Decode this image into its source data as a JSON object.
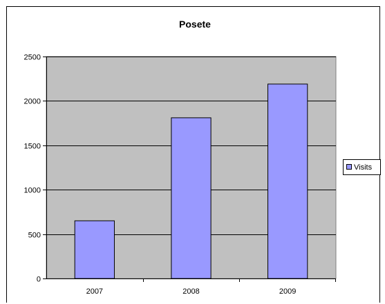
{
  "chart_data": {
    "type": "bar",
    "title": "Posete",
    "xlabel": "",
    "ylabel": "",
    "categories": [
      "2007",
      "2008",
      "2009"
    ],
    "series": [
      {
        "name": "Visits",
        "values": [
          650,
          1810,
          2190
        ],
        "color": "#9999ff"
      }
    ],
    "ylim": [
      0,
      2500
    ],
    "yticks": [
      0,
      500,
      1000,
      1500,
      2000,
      2500
    ],
    "grid": true,
    "legend": "right",
    "plot_background": "#c0c0c0"
  }
}
